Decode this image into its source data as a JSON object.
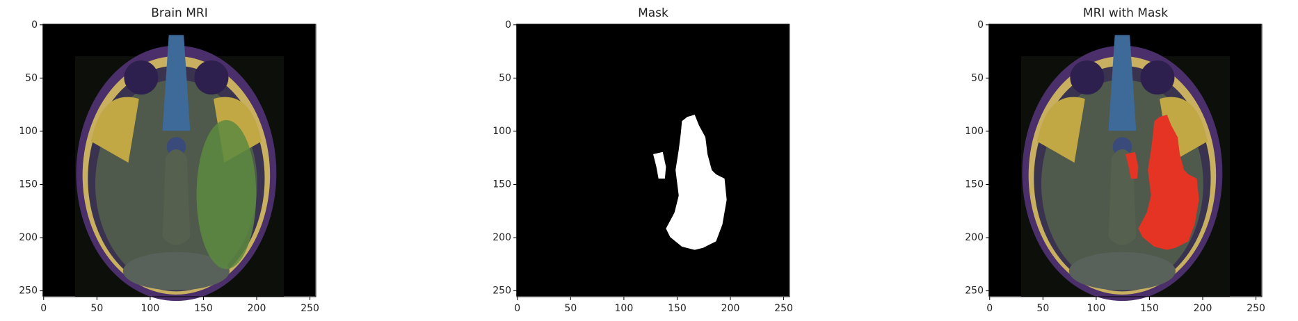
{
  "chart_data": [
    {
      "type": "image",
      "title": "Brain MRI",
      "xlim": [
        -0.5,
        255.5
      ],
      "ylim": [
        255.5,
        -0.5
      ],
      "xticks": [
        0,
        50,
        100,
        150,
        200,
        250
      ],
      "yticks": [
        0,
        50,
        100,
        150,
        200,
        250
      ]
    },
    {
      "type": "image",
      "title": "Mask",
      "xlim": [
        -0.5,
        255.5
      ],
      "ylim": [
        255.5,
        -0.5
      ],
      "xticks": [
        0,
        50,
        100,
        150,
        200,
        250
      ],
      "yticks": [
        0,
        50,
        100,
        150,
        200,
        250
      ]
    },
    {
      "type": "image",
      "title": "MRI with Mask",
      "xlim": [
        -0.5,
        255.5
      ],
      "ylim": [
        255.5,
        -0.5
      ],
      "xticks": [
        0,
        50,
        100,
        150,
        200,
        250
      ],
      "yticks": [
        0,
        50,
        100,
        150,
        200,
        250
      ]
    }
  ]
}
